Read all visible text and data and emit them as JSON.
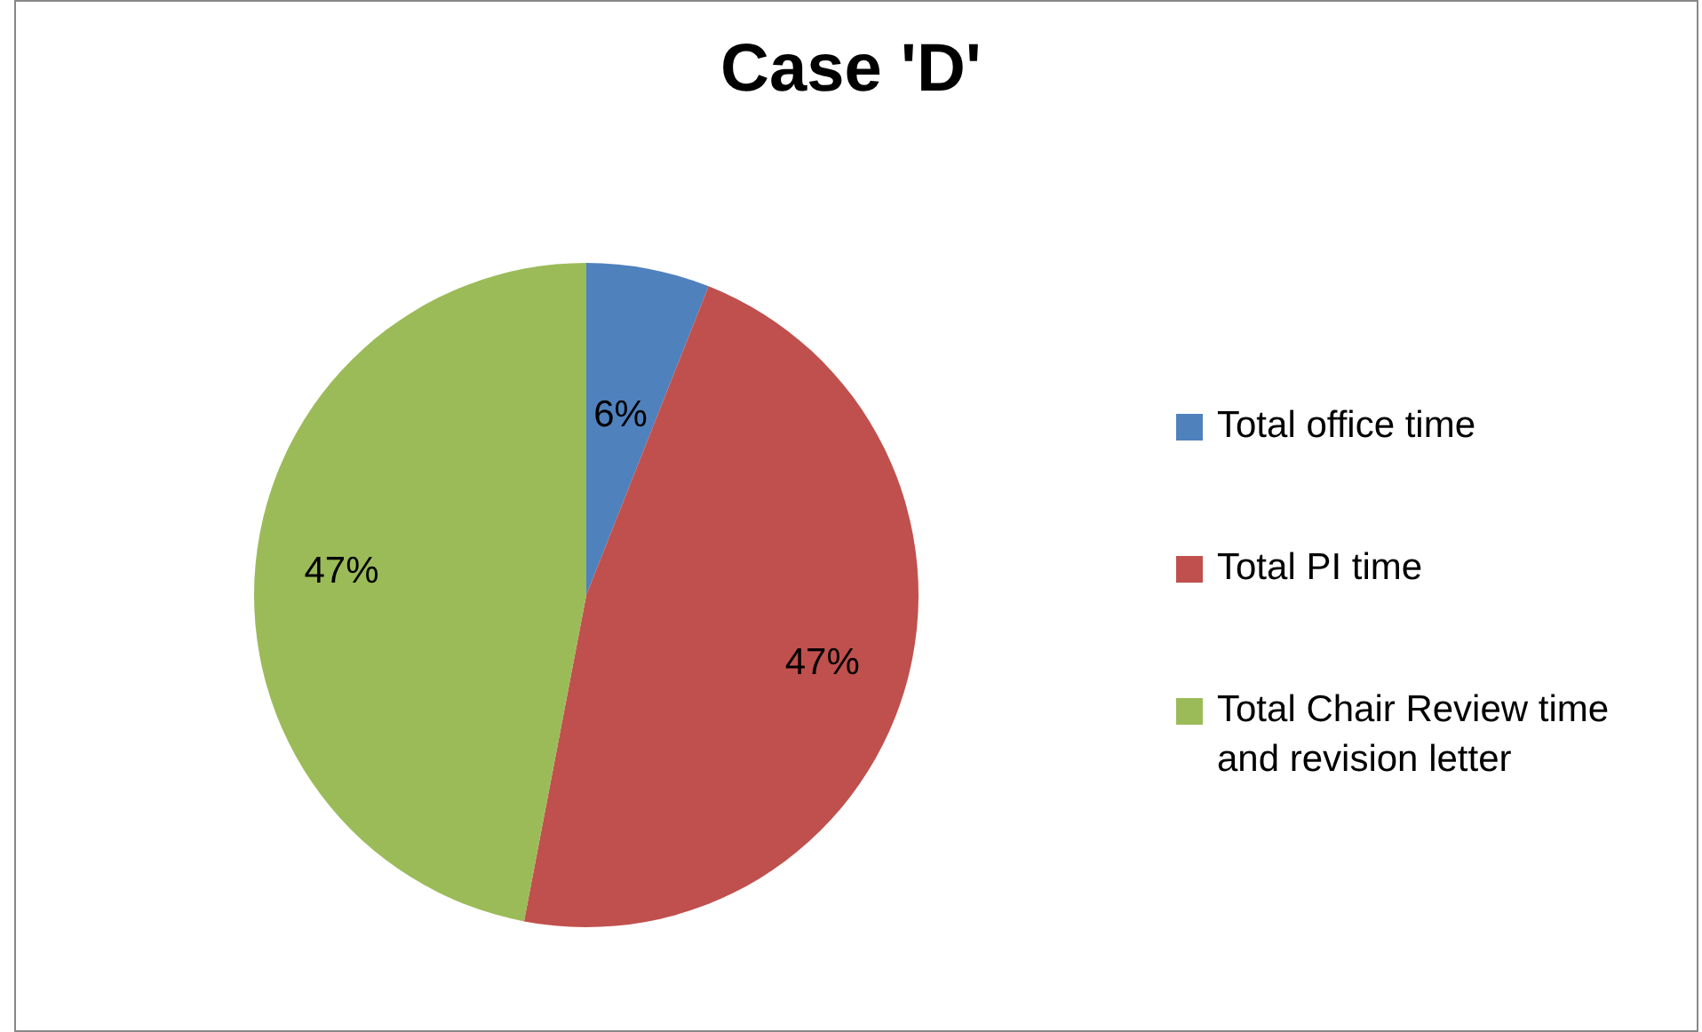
{
  "chart_data": {
    "type": "pie",
    "title": "Case 'D'",
    "categories": [
      "Total office time",
      "Total PI time",
      "Total Chair Review time and revision letter"
    ],
    "values": [
      6,
      47,
      47
    ],
    "colors": [
      "#4f81bd",
      "#c0504d",
      "#9bbb59"
    ],
    "value_labels": [
      "6%",
      "47%",
      "47%"
    ],
    "legend": "right"
  }
}
